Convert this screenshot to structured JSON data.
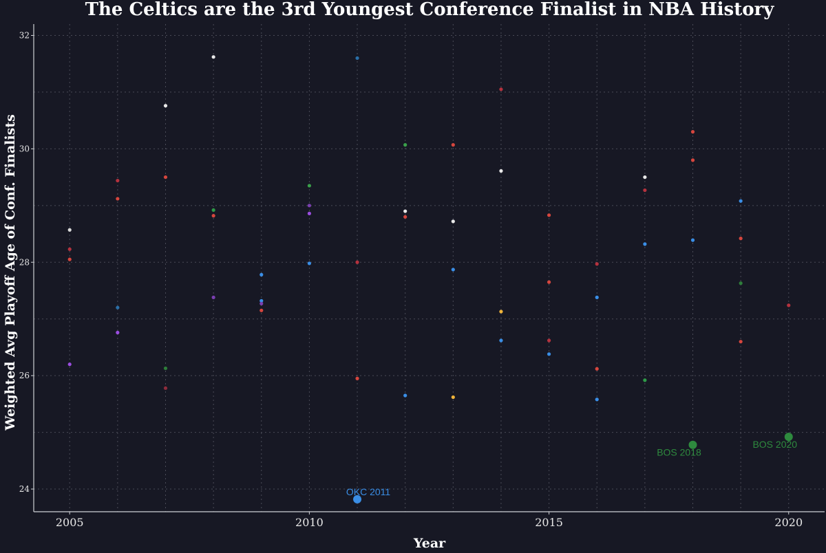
{
  "chart_data": {
    "type": "scatter",
    "title": "The Celtics are the 3rd Youngest Conference Finalist in NBA History",
    "xlabel": "Year",
    "ylabel": "Weighted Avg Playoff Age of Conf. Finalists",
    "xlim": [
      2004.25,
      2020.75
    ],
    "ylim": [
      23.6,
      32.2
    ],
    "x_ticks": [
      2005,
      2010,
      2015,
      2020
    ],
    "y_ticks": [
      24,
      26,
      28,
      30,
      32
    ],
    "grid": true,
    "legend": "none",
    "points": [
      {
        "x": 2005,
        "y": 28.57,
        "color": "#d9d9d9"
      },
      {
        "x": 2005,
        "y": 28.23,
        "color": "#b5323e"
      },
      {
        "x": 2005,
        "y": 28.05,
        "color": "#d6463e"
      },
      {
        "x": 2005,
        "y": 26.2,
        "color": "#9b4de0"
      },
      {
        "x": 2006,
        "y": 29.44,
        "color": "#b5323e"
      },
      {
        "x": 2006,
        "y": 29.12,
        "color": "#d6463e"
      },
      {
        "x": 2006,
        "y": 27.2,
        "color": "#2a6fa8"
      },
      {
        "x": 2006,
        "y": 26.76,
        "color": "#9b4de0"
      },
      {
        "x": 2007,
        "y": 30.76,
        "color": "#e8e8e8"
      },
      {
        "x": 2007,
        "y": 29.5,
        "color": "#d6463e"
      },
      {
        "x": 2007,
        "y": 26.13,
        "color": "#2e7d3a"
      },
      {
        "x": 2007,
        "y": 25.78,
        "color": "#8e2c3c"
      },
      {
        "x": 2008,
        "y": 31.62,
        "color": "#e8e8e8"
      },
      {
        "x": 2008,
        "y": 28.92,
        "color": "#2e9a48"
      },
      {
        "x": 2008,
        "y": 28.82,
        "color": "#d6463e"
      },
      {
        "x": 2008,
        "y": 27.38,
        "color": "#7a3fb0"
      },
      {
        "x": 2009,
        "y": 27.78,
        "color": "#3a8ee6"
      },
      {
        "x": 2009,
        "y": 27.32,
        "color": "#3a8ee6"
      },
      {
        "x": 2009,
        "y": 27.27,
        "color": "#7a3fb0"
      },
      {
        "x": 2009,
        "y": 27.15,
        "color": "#d6463e"
      },
      {
        "x": 2010,
        "y": 29.35,
        "color": "#3aa04a"
      },
      {
        "x": 2010,
        "y": 29.0,
        "color": "#7a3fb0"
      },
      {
        "x": 2010,
        "y": 28.86,
        "color": "#9b4de0"
      },
      {
        "x": 2010,
        "y": 27.98,
        "color": "#3a8ee6"
      },
      {
        "x": 2011,
        "y": 31.6,
        "color": "#2a6fa8"
      },
      {
        "x": 2011,
        "y": 28.0,
        "color": "#b5323e"
      },
      {
        "x": 2011,
        "y": 25.95,
        "color": "#d6463e"
      },
      {
        "x": 2011,
        "y": 23.82,
        "color": "#3a8ee6",
        "size": "large",
        "label": "OKC 2011"
      },
      {
        "x": 2012,
        "y": 30.07,
        "color": "#3aa04a"
      },
      {
        "x": 2012,
        "y": 28.9,
        "color": "#e8e8e8"
      },
      {
        "x": 2012,
        "y": 28.8,
        "color": "#d6463e"
      },
      {
        "x": 2012,
        "y": 25.65,
        "color": "#3a8ee6"
      },
      {
        "x": 2013,
        "y": 30.07,
        "color": "#d6463e"
      },
      {
        "x": 2013,
        "y": 28.72,
        "color": "#e8e8e8"
      },
      {
        "x": 2013,
        "y": 27.87,
        "color": "#3a8ee6"
      },
      {
        "x": 2013,
        "y": 25.62,
        "color": "#f0b43a"
      },
      {
        "x": 2014,
        "y": 31.05,
        "color": "#b5323e"
      },
      {
        "x": 2014,
        "y": 29.61,
        "color": "#e8e8e8"
      },
      {
        "x": 2014,
        "y": 27.13,
        "color": "#f0b43a"
      },
      {
        "x": 2014,
        "y": 26.62,
        "color": "#3a8ee6"
      },
      {
        "x": 2015,
        "y": 28.83,
        "color": "#d6463e"
      },
      {
        "x": 2015,
        "y": 27.65,
        "color": "#d6463e"
      },
      {
        "x": 2015,
        "y": 26.62,
        "color": "#b5323e"
      },
      {
        "x": 2015,
        "y": 26.38,
        "color": "#3a8ee6"
      },
      {
        "x": 2016,
        "y": 27.97,
        "color": "#b5323e"
      },
      {
        "x": 2016,
        "y": 27.38,
        "color": "#3a8ee6"
      },
      {
        "x": 2016,
        "y": 26.12,
        "color": "#d6463e"
      },
      {
        "x": 2016,
        "y": 25.58,
        "color": "#3a8ee6"
      },
      {
        "x": 2017,
        "y": 29.5,
        "color": "#e8e8e8"
      },
      {
        "x": 2017,
        "y": 29.27,
        "color": "#b5323e"
      },
      {
        "x": 2017,
        "y": 28.32,
        "color": "#3a8ee6"
      },
      {
        "x": 2017,
        "y": 25.92,
        "color": "#2e9a48"
      },
      {
        "x": 2018,
        "y": 30.3,
        "color": "#d6463e"
      },
      {
        "x": 2018,
        "y": 29.8,
        "color": "#d6463e"
      },
      {
        "x": 2018,
        "y": 28.39,
        "color": "#3a8ee6"
      },
      {
        "x": 2018,
        "y": 24.78,
        "color": "#2e8a3e",
        "size": "large",
        "label": "BOS 2018"
      },
      {
        "x": 2019,
        "y": 29.08,
        "color": "#3a8ee6"
      },
      {
        "x": 2019,
        "y": 28.42,
        "color": "#d6463e"
      },
      {
        "x": 2019,
        "y": 27.63,
        "color": "#2e7d3a"
      },
      {
        "x": 2019,
        "y": 26.6,
        "color": "#d6463e"
      },
      {
        "x": 2020,
        "y": 27.24,
        "color": "#b5323e"
      },
      {
        "x": 2020,
        "y": 24.92,
        "color": "#2e8a3e",
        "size": "large",
        "label": "BOS 2020"
      }
    ]
  }
}
